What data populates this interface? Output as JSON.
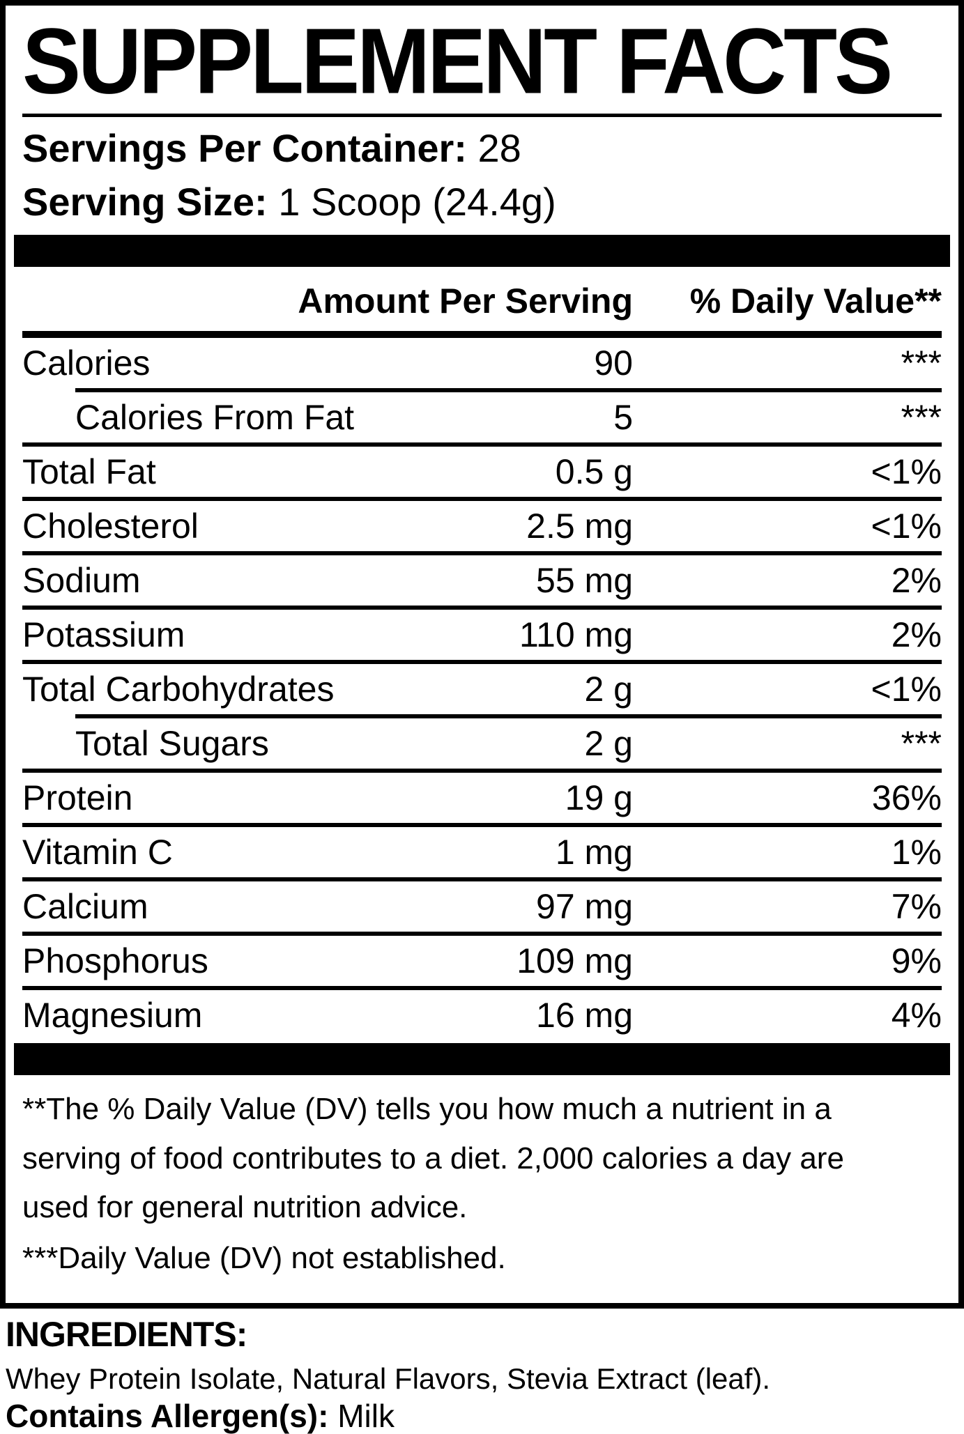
{
  "label": {
    "title": "SUPPLEMENT FACTS",
    "servings_per_container": {
      "label": "Servings Per Container:",
      "value": "28"
    },
    "serving_size": {
      "label": "Serving Size:",
      "value": "1 Scoop (24.4g)"
    },
    "columns": {
      "amount": "Amount Per Serving",
      "dv": "% Daily Value**"
    },
    "rows": [
      {
        "name": "Calories",
        "amount": "90",
        "dv": "***"
      },
      {
        "name": "Calories From Fat",
        "amount": "5",
        "dv": "***",
        "indent": true
      },
      {
        "name": "Total Fat",
        "amount": "0.5 g",
        "dv": "<1%"
      },
      {
        "name": "Cholesterol",
        "amount": "2.5 mg",
        "dv": "<1%"
      },
      {
        "name": "Sodium",
        "amount": "55 mg",
        "dv": "2%"
      },
      {
        "name": "Potassium",
        "amount": "110 mg",
        "dv": "2%"
      },
      {
        "name": "Total Carbohydrates",
        "amount": "2 g",
        "dv": "<1%"
      },
      {
        "name": "Total Sugars",
        "amount": "2 g",
        "dv": "***",
        "indent": true
      },
      {
        "name": "Protein",
        "amount": "19 g",
        "dv": "36%"
      },
      {
        "name": "Vitamin C",
        "amount": "1 mg",
        "dv": "1%"
      },
      {
        "name": "Calcium",
        "amount": "97 mg",
        "dv": "7%"
      },
      {
        "name": "Phosphorus",
        "amount": "109 mg",
        "dv": "9%"
      },
      {
        "name": "Magnesium",
        "amount": "16 mg",
        "dv": "4%"
      }
    ],
    "footnote1_lines": [
      "**The % Daily Value (DV) tells you how much a nutrient in a",
      "serving of food contributes to a diet. 2,000 calories a day are",
      "used for general nutrition advice."
    ],
    "footnote2": "***Daily Value (DV) not established."
  },
  "ingredients": {
    "heading": "INGREDIENTS:",
    "list": "Whey Protein Isolate, Natural Flavors, Stevia Extract (leaf).",
    "allergen_label": "Contains Allergen(s):",
    "allergen_value": "Milk"
  },
  "colors": {
    "ink": "#000000",
    "paper": "#ffffff"
  }
}
